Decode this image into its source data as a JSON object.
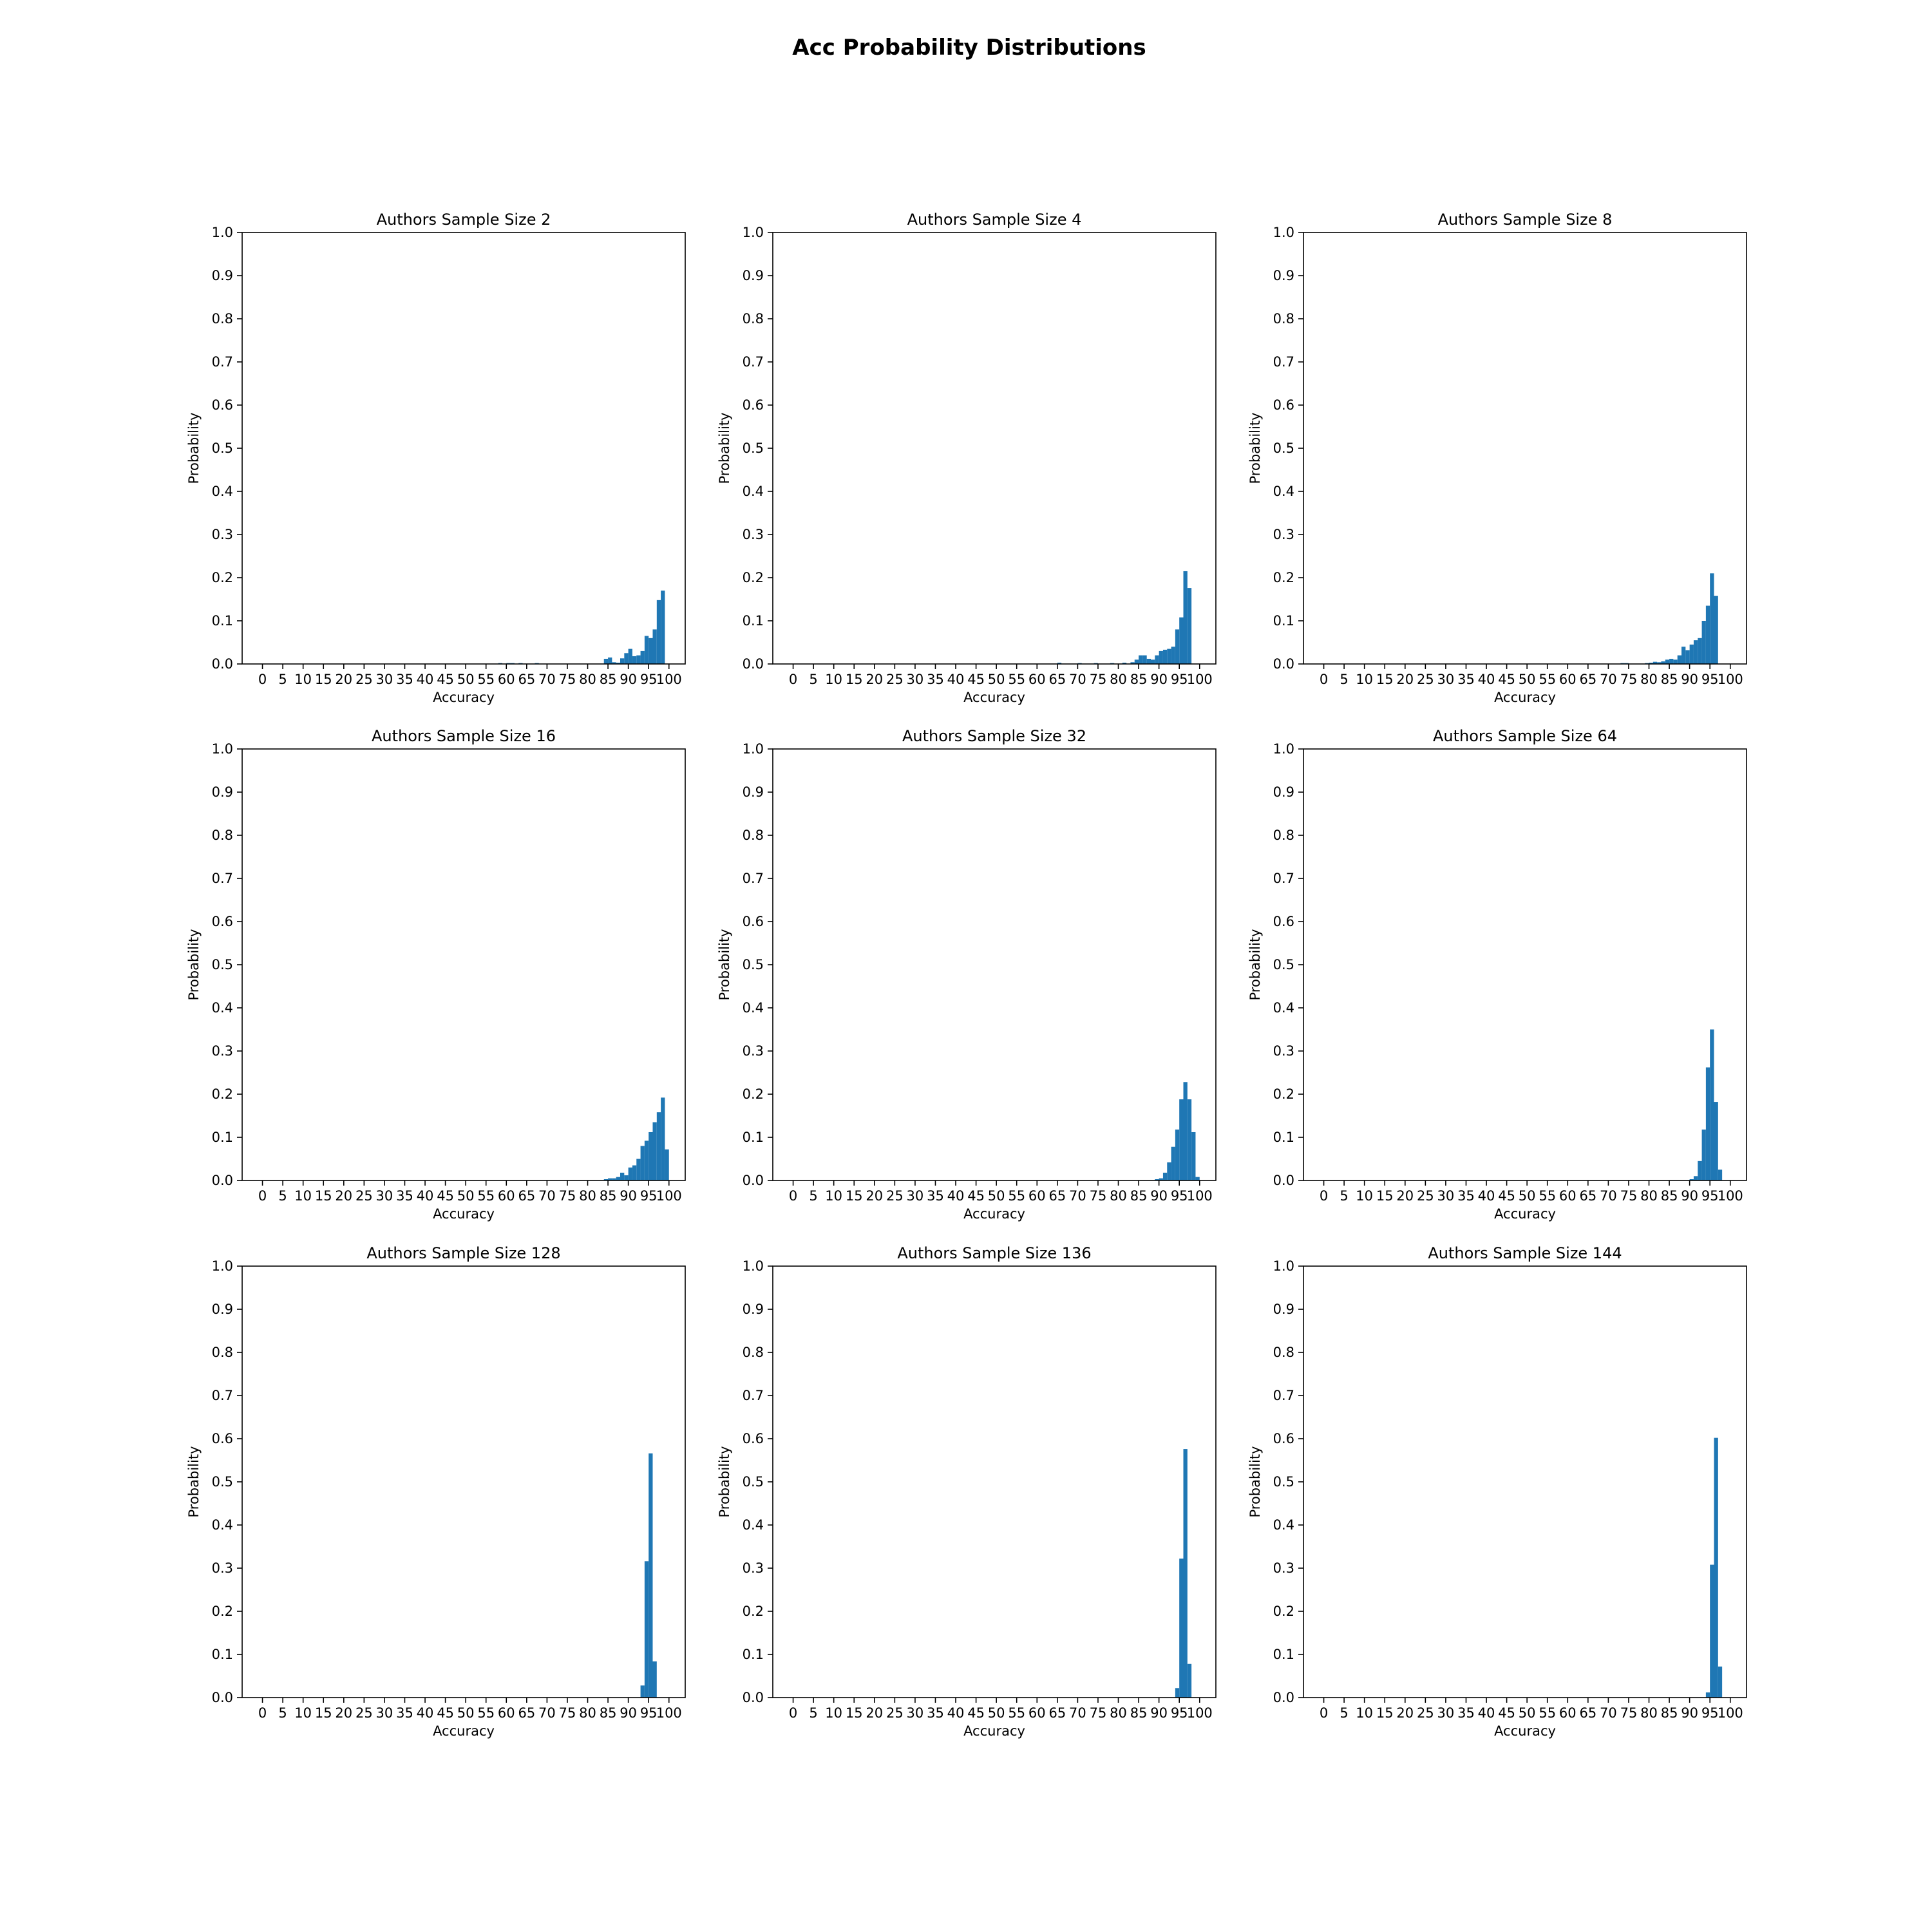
{
  "figure_title": "Acc Probability Distributions",
  "colors": {
    "bar": "#1f77b4",
    "axis": "#000000",
    "background": "#ffffff"
  },
  "chart_data": [
    {
      "type": "bar",
      "title": "Authors Sample Size 2",
      "xlabel": "Accuracy",
      "ylabel": "Probability",
      "xticks": [
        "0",
        "5",
        "10",
        "15",
        "20",
        "25",
        "30",
        "35",
        "40",
        "45",
        "50",
        "55",
        "60",
        "65",
        "70",
        "75",
        "80",
        "85",
        "90",
        "95",
        "100"
      ],
      "yticks": [
        "0.0",
        "0.1",
        "0.2",
        "0.3",
        "0.4",
        "0.5",
        "0.6",
        "0.7",
        "0.8",
        "0.9",
        "1.0"
      ],
      "xlim": [
        -5,
        104
      ],
      "ylim": [
        0,
        1
      ],
      "grid": false,
      "bins": [
        [
          58,
          0.002
        ],
        [
          60,
          0.002
        ],
        [
          61,
          0.002
        ],
        [
          63,
          0.002
        ],
        [
          67,
          0.002
        ],
        [
          84,
          0.012
        ],
        [
          85,
          0.015
        ],
        [
          86,
          0.004
        ],
        [
          87,
          0.003
        ],
        [
          88,
          0.013
        ],
        [
          89,
          0.025
        ],
        [
          90,
          0.035
        ],
        [
          91,
          0.018
        ],
        [
          92,
          0.02
        ],
        [
          93,
          0.03
        ],
        [
          94,
          0.065
        ],
        [
          95,
          0.06
        ],
        [
          96,
          0.08
        ],
        [
          97,
          0.148
        ],
        [
          98,
          0.17
        ]
      ]
    },
    {
      "type": "bar",
      "title": "Authors Sample Size 4",
      "xlabel": "Accuracy",
      "ylabel": "Probability",
      "xticks": [
        "0",
        "5",
        "10",
        "15",
        "20",
        "25",
        "30",
        "35",
        "40",
        "45",
        "50",
        "55",
        "60",
        "65",
        "70",
        "75",
        "80",
        "85",
        "90",
        "95",
        "100"
      ],
      "yticks": [
        "0.0",
        "0.1",
        "0.2",
        "0.3",
        "0.4",
        "0.5",
        "0.6",
        "0.7",
        "0.8",
        "0.9",
        "1.0"
      ],
      "xlim": [
        -5,
        104
      ],
      "ylim": [
        0,
        1
      ],
      "grid": false,
      "bins": [
        [
          65,
          0.003
        ],
        [
          70,
          0.002
        ],
        [
          74,
          0.002
        ],
        [
          78,
          0.002
        ],
        [
          81,
          0.003
        ],
        [
          83,
          0.004
        ],
        [
          84,
          0.01
        ],
        [
          85,
          0.02
        ],
        [
          86,
          0.02
        ],
        [
          87,
          0.012
        ],
        [
          88,
          0.01
        ],
        [
          89,
          0.02
        ],
        [
          90,
          0.03
        ],
        [
          91,
          0.033
        ],
        [
          92,
          0.035
        ],
        [
          93,
          0.04
        ],
        [
          94,
          0.08
        ],
        [
          95,
          0.108
        ],
        [
          96,
          0.215
        ],
        [
          97,
          0.176
        ]
      ]
    },
    {
      "type": "bar",
      "title": "Authors Sample Size 8",
      "xlabel": "Accuracy",
      "ylabel": "Probability",
      "xticks": [
        "0",
        "5",
        "10",
        "15",
        "20",
        "25",
        "30",
        "35",
        "40",
        "45",
        "50",
        "55",
        "60",
        "65",
        "70",
        "75",
        "80",
        "85",
        "90",
        "95",
        "100"
      ],
      "yticks": [
        "0.0",
        "0.1",
        "0.2",
        "0.3",
        "0.4",
        "0.5",
        "0.6",
        "0.7",
        "0.8",
        "0.9",
        "1.0"
      ],
      "xlim": [
        -5,
        104
      ],
      "ylim": [
        0,
        1
      ],
      "grid": false,
      "bins": [
        [
          73,
          0.002
        ],
        [
          74,
          0.002
        ],
        [
          79,
          0.002
        ],
        [
          80,
          0.003
        ],
        [
          81,
          0.005
        ],
        [
          82,
          0.004
        ],
        [
          83,
          0.006
        ],
        [
          84,
          0.01
        ],
        [
          85,
          0.012
        ],
        [
          86,
          0.01
        ],
        [
          87,
          0.02
        ],
        [
          88,
          0.04
        ],
        [
          89,
          0.032
        ],
        [
          90,
          0.045
        ],
        [
          91,
          0.055
        ],
        [
          92,
          0.06
        ],
        [
          93,
          0.1
        ],
        [
          94,
          0.135
        ],
        [
          95,
          0.21
        ],
        [
          96,
          0.158
        ]
      ]
    },
    {
      "type": "bar",
      "title": "Authors Sample Size 16",
      "xlabel": "Accuracy",
      "ylabel": "Probability",
      "xticks": [
        "0",
        "5",
        "10",
        "15",
        "20",
        "25",
        "30",
        "35",
        "40",
        "45",
        "50",
        "55",
        "60",
        "65",
        "70",
        "75",
        "80",
        "85",
        "90",
        "95",
        "100"
      ],
      "yticks": [
        "0.0",
        "0.1",
        "0.2",
        "0.3",
        "0.4",
        "0.5",
        "0.6",
        "0.7",
        "0.8",
        "0.9",
        "1.0"
      ],
      "xlim": [
        -5,
        104
      ],
      "ylim": [
        0,
        1
      ],
      "grid": false,
      "bins": [
        [
          84,
          0.003
        ],
        [
          85,
          0.005
        ],
        [
          86,
          0.005
        ],
        [
          87,
          0.008
        ],
        [
          88,
          0.018
        ],
        [
          89,
          0.012
        ],
        [
          90,
          0.03
        ],
        [
          91,
          0.035
        ],
        [
          92,
          0.05
        ],
        [
          93,
          0.08
        ],
        [
          94,
          0.092
        ],
        [
          95,
          0.112
        ],
        [
          96,
          0.135
        ],
        [
          97,
          0.158
        ],
        [
          98,
          0.192
        ],
        [
          99,
          0.072
        ]
      ]
    },
    {
      "type": "bar",
      "title": "Authors Sample Size 32",
      "xlabel": "Accuracy",
      "ylabel": "Probability",
      "xticks": [
        "0",
        "5",
        "10",
        "15",
        "20",
        "25",
        "30",
        "35",
        "40",
        "45",
        "50",
        "55",
        "60",
        "65",
        "70",
        "75",
        "80",
        "85",
        "90",
        "95",
        "100"
      ],
      "yticks": [
        "0.0",
        "0.1",
        "0.2",
        "0.3",
        "0.4",
        "0.5",
        "0.6",
        "0.7",
        "0.8",
        "0.9",
        "1.0"
      ],
      "xlim": [
        -5,
        104
      ],
      "ylim": [
        0,
        1
      ],
      "grid": false,
      "bins": [
        [
          89,
          0.003
        ],
        [
          90,
          0.005
        ],
        [
          91,
          0.018
        ],
        [
          92,
          0.042
        ],
        [
          93,
          0.078
        ],
        [
          94,
          0.118
        ],
        [
          95,
          0.188
        ],
        [
          96,
          0.228
        ],
        [
          97,
          0.188
        ],
        [
          98,
          0.112
        ],
        [
          99,
          0.008
        ]
      ]
    },
    {
      "type": "bar",
      "title": "Authors Sample Size 64",
      "xlabel": "Accuracy",
      "ylabel": "Probability",
      "xticks": [
        "0",
        "5",
        "10",
        "15",
        "20",
        "25",
        "30",
        "35",
        "40",
        "45",
        "50",
        "55",
        "60",
        "65",
        "70",
        "75",
        "80",
        "85",
        "90",
        "95",
        "100"
      ],
      "yticks": [
        "0.0",
        "0.1",
        "0.2",
        "0.3",
        "0.4",
        "0.5",
        "0.6",
        "0.7",
        "0.8",
        "0.9",
        "1.0"
      ],
      "xlim": [
        -5,
        104
      ],
      "ylim": [
        0,
        1
      ],
      "grid": false,
      "bins": [
        [
          90,
          0.003
        ],
        [
          91,
          0.01
        ],
        [
          92,
          0.045
        ],
        [
          93,
          0.118
        ],
        [
          94,
          0.262
        ],
        [
          95,
          0.35
        ],
        [
          96,
          0.182
        ],
        [
          97,
          0.025
        ]
      ]
    },
    {
      "type": "bar",
      "title": "Authors Sample Size 128",
      "xlabel": "Accuracy",
      "ylabel": "Probability",
      "xticks": [
        "0",
        "5",
        "10",
        "15",
        "20",
        "25",
        "30",
        "35",
        "40",
        "45",
        "50",
        "55",
        "60",
        "65",
        "70",
        "75",
        "80",
        "85",
        "90",
        "95",
        "100"
      ],
      "yticks": [
        "0.0",
        "0.1",
        "0.2",
        "0.3",
        "0.4",
        "0.5",
        "0.6",
        "0.7",
        "0.8",
        "0.9",
        "1.0"
      ],
      "xlim": [
        -5,
        104
      ],
      "ylim": [
        0,
        1
      ],
      "grid": false,
      "bins": [
        [
          93,
          0.028
        ],
        [
          94,
          0.316
        ],
        [
          95,
          0.566
        ],
        [
          96,
          0.084
        ]
      ]
    },
    {
      "type": "bar",
      "title": "Authors Sample Size 136",
      "xlabel": "Accuracy",
      "ylabel": "Probability",
      "xticks": [
        "0",
        "5",
        "10",
        "15",
        "20",
        "25",
        "30",
        "35",
        "40",
        "45",
        "50",
        "55",
        "60",
        "65",
        "70",
        "75",
        "80",
        "85",
        "90",
        "95",
        "100"
      ],
      "yticks": [
        "0.0",
        "0.1",
        "0.2",
        "0.3",
        "0.4",
        "0.5",
        "0.6",
        "0.7",
        "0.8",
        "0.9",
        "1.0"
      ],
      "xlim": [
        -5,
        104
      ],
      "ylim": [
        0,
        1
      ],
      "grid": false,
      "bins": [
        [
          94,
          0.022
        ],
        [
          95,
          0.322
        ],
        [
          96,
          0.576
        ],
        [
          97,
          0.078
        ]
      ]
    },
    {
      "type": "bar",
      "title": "Authors Sample Size 144",
      "xlabel": "Accuracy",
      "ylabel": "Probability",
      "xticks": [
        "0",
        "5",
        "10",
        "15",
        "20",
        "25",
        "30",
        "35",
        "40",
        "45",
        "50",
        "55",
        "60",
        "65",
        "70",
        "75",
        "80",
        "85",
        "90",
        "95",
        "100"
      ],
      "yticks": [
        "0.0",
        "0.1",
        "0.2",
        "0.3",
        "0.4",
        "0.5",
        "0.6",
        "0.7",
        "0.8",
        "0.9",
        "1.0"
      ],
      "xlim": [
        -5,
        104
      ],
      "ylim": [
        0,
        1
      ],
      "grid": false,
      "bins": [
        [
          94,
          0.012
        ],
        [
          95,
          0.308
        ],
        [
          96,
          0.602
        ],
        [
          97,
          0.072
        ]
      ]
    }
  ]
}
